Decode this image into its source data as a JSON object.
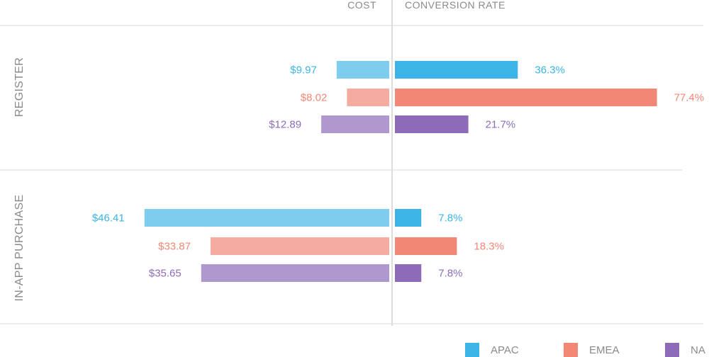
{
  "chart_data": {
    "type": "bar",
    "layout": "diverging-horizontal",
    "left_axis_title": "COST",
    "right_axis_title": "CONVERSION RATE",
    "groups": [
      "REGISTER",
      "IN-APP PURCHASE"
    ],
    "series": [
      {
        "name": "APAC",
        "color": "#3cb4e6",
        "cost_color": "#7fcdee",
        "cost": [
          9.97,
          46.41
        ],
        "cost_labels": [
          "$9.97",
          "$46.41"
        ],
        "conversion": [
          36.3,
          7.8
        ],
        "conversion_labels": [
          "36.3%",
          "7.8%"
        ]
      },
      {
        "name": "EMEA",
        "color": "#f38776",
        "cost_color": "#f5aba0",
        "cost": [
          8.02,
          33.87
        ],
        "cost_labels": [
          "$8.02",
          "$33.87"
        ],
        "conversion": [
          77.4,
          18.3
        ],
        "conversion_labels": [
          "77.4%",
          "18.3%"
        ]
      },
      {
        "name": "NA",
        "color": "#8e6bb8",
        "cost_color": "#af98cd",
        "cost": [
          12.89,
          35.65
        ],
        "cost_labels": [
          "$12.89",
          "$35.65"
        ],
        "conversion": [
          21.7,
          7.8
        ],
        "conversion_labels": [
          "21.7%",
          "7.8%"
        ]
      }
    ],
    "cost_max": 50,
    "conversion_max": 80,
    "legend": [
      "APAC",
      "EMEA",
      "NA"
    ],
    "legend_position": "bottom-right"
  }
}
